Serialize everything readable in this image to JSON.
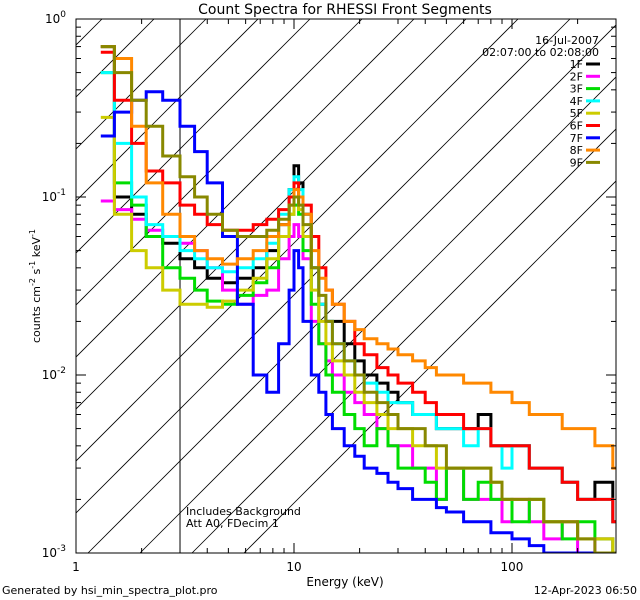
{
  "chart_data": {
    "type": "line",
    "title": "Count Spectra for RHESSI Front Segments",
    "xlabel": "Energy (keV)",
    "ylabel_main": "counts cm",
    "ylabel_sup1": "-2",
    "ylabel_mid": " s",
    "ylabel_sup2": "-1",
    "ylabel_end": " keV",
    "ylabel_sup3": "-1",
    "x_scale": "log",
    "y_scale": "log",
    "xlim": [
      1,
      300
    ],
    "ylim": [
      0.001,
      1
    ],
    "x_tick_labels": [
      {
        "value": 1,
        "label": "1"
      },
      {
        "value": 10,
        "label": "10"
      },
      {
        "value": 100,
        "label": "100"
      }
    ],
    "y_tick_labels": [
      {
        "value": 1,
        "base": "10",
        "exp": "0"
      },
      {
        "value": 0.1,
        "base": "10",
        "exp": "-1"
      },
      {
        "value": 0.01,
        "base": "10",
        "exp": "-2"
      },
      {
        "value": 0.001,
        "base": "10",
        "exp": "-3"
      }
    ],
    "date_label": "16-Jul-2007",
    "time_range_label": "02:07:00 to 02:08:00",
    "hatched_region_max_energy": 3,
    "annotation_line1": "Includes Background",
    "annotation_line2": "Att A0, FDecim 1",
    "series": [
      {
        "name": "1F",
        "color": "#000000",
        "x": [
          1.3,
          1.5,
          1.8,
          2.1,
          2.5,
          3.0,
          3.5,
          4.0,
          4.7,
          5.5,
          6.5,
          7.5,
          8.5,
          9.5,
          10,
          10.5,
          11,
          12,
          13,
          14,
          15,
          17,
          19,
          21,
          24,
          27,
          30,
          35,
          40,
          45,
          50,
          60,
          70,
          80,
          90,
          100,
          120,
          140,
          170,
          200,
          240,
          290
        ],
        "y": [
          0.7,
          0.1,
          0.08,
          0.06,
          0.055,
          0.045,
          0.04,
          0.035,
          0.033,
          0.035,
          0.04,
          0.05,
          0.07,
          0.11,
          0.15,
          0.12,
          0.08,
          0.04,
          0.025,
          0.02,
          0.02,
          0.015,
          0.012,
          0.01,
          0.009,
          0.008,
          0.007,
          0.006,
          0.006,
          0.005,
          0.005,
          0.005,
          0.006,
          0.004,
          0.004,
          0.004,
          0.003,
          0.003,
          0.0025,
          0.002,
          0.0025,
          0.0015
        ]
      },
      {
        "name": "2F",
        "color": "#ff00ff",
        "x": [
          1.3,
          1.5,
          1.8,
          2.1,
          2.5,
          3.0,
          3.5,
          4.0,
          4.7,
          5.5,
          6.5,
          7.5,
          8.5,
          9.5,
          10,
          10.5,
          11,
          12,
          13,
          14,
          15,
          17,
          19,
          21,
          24,
          27,
          30,
          35,
          40,
          45,
          50,
          60,
          70,
          80,
          90,
          100,
          120,
          140,
          170,
          200,
          240,
          290
        ],
        "y": [
          0.095,
          0.085,
          0.075,
          0.065,
          0.06,
          0.055,
          0.05,
          0.04,
          0.03,
          0.025,
          0.028,
          0.03,
          0.045,
          0.06,
          0.07,
          0.06,
          0.045,
          0.02,
          0.015,
          0.012,
          0.01,
          0.008,
          0.007,
          0.006,
          0.005,
          0.004,
          0.004,
          0.003,
          0.003,
          0.002,
          0.003,
          0.002,
          0.002,
          0.002,
          0.0015,
          0.002,
          0.0015,
          0.0012,
          0.0015,
          0.001,
          0.0012,
          0.001
        ]
      },
      {
        "name": "3F",
        "color": "#00dd00",
        "x": [
          1.3,
          1.5,
          1.8,
          2.1,
          2.5,
          3.0,
          3.5,
          4.0,
          4.7,
          5.5,
          6.5,
          7.5,
          8.5,
          9.5,
          10,
          10.5,
          11,
          12,
          13,
          14,
          15,
          17,
          19,
          21,
          24,
          27,
          30,
          35,
          40,
          45,
          50,
          60,
          70,
          80,
          90,
          100,
          120,
          140,
          170,
          200,
          240,
          290
        ],
        "y": [
          0.5,
          0.12,
          0.09,
          0.06,
          0.04,
          0.035,
          0.03,
          0.026,
          0.025,
          0.028,
          0.033,
          0.04,
          0.06,
          0.08,
          0.09,
          0.08,
          0.05,
          0.025,
          0.015,
          0.01,
          0.008,
          0.006,
          0.005,
          0.004,
          0.005,
          0.004,
          0.003,
          0.003,
          0.0025,
          0.002,
          0.003,
          0.002,
          0.0025,
          0.002,
          0.002,
          0.0015,
          0.002,
          0.0015,
          0.0012,
          0.0015,
          0.0012,
          0.001
        ]
      },
      {
        "name": "4F",
        "color": "#00ffff",
        "x": [
          1.3,
          1.5,
          1.8,
          2.1,
          2.5,
          3.0,
          3.5,
          4.0,
          4.7,
          5.5,
          6.5,
          7.5,
          8.5,
          9.5,
          10,
          10.5,
          11,
          12,
          13,
          14,
          15,
          17,
          19,
          21,
          24,
          27,
          30,
          35,
          40,
          45,
          50,
          60,
          70,
          80,
          90,
          100,
          120,
          140,
          170,
          200,
          240,
          290
        ],
        "y": [
          0.5,
          0.2,
          0.1,
          0.07,
          0.06,
          0.05,
          0.045,
          0.04,
          0.038,
          0.04,
          0.045,
          0.055,
          0.08,
          0.11,
          0.13,
          0.11,
          0.08,
          0.04,
          0.025,
          0.02,
          0.015,
          0.012,
          0.01,
          0.009,
          0.008,
          0.007,
          0.007,
          0.006,
          0.006,
          0.005,
          0.005,
          0.004,
          0.005,
          0.004,
          0.003,
          0.004,
          0.003,
          0.003,
          0.0025,
          0.002,
          0.002,
          0.0015
        ]
      },
      {
        "name": "5F",
        "color": "#cccc00",
        "x": [
          1.3,
          1.5,
          1.8,
          2.1,
          2.5,
          3.0,
          3.5,
          4.0,
          4.7,
          5.5,
          6.5,
          7.5,
          8.5,
          9.5,
          10,
          10.5,
          11,
          12,
          13,
          14,
          15,
          17,
          19,
          21,
          24,
          27,
          30,
          35,
          40,
          45,
          50,
          60,
          70,
          80,
          90,
          100,
          120,
          140,
          170,
          200,
          240,
          290
        ],
        "y": [
          0.28,
          0.08,
          0.05,
          0.04,
          0.03,
          0.025,
          0.025,
          0.024,
          0.026,
          0.03,
          0.035,
          0.045,
          0.06,
          0.08,
          0.1,
          0.085,
          0.06,
          0.03,
          0.02,
          0.015,
          0.012,
          0.01,
          0.008,
          0.007,
          0.006,
          0.005,
          0.005,
          0.004,
          0.004,
          0.003,
          0.003,
          0.003,
          0.003,
          0.0025,
          0.002,
          0.002,
          0.002,
          0.0015,
          0.0015,
          0.0012,
          0.0012,
          0.001
        ]
      },
      {
        "name": "6F",
        "color": "#ff0000",
        "x": [
          1.3,
          1.5,
          1.8,
          2.1,
          2.5,
          3.0,
          3.5,
          4.0,
          4.7,
          5.5,
          6.5,
          7.5,
          8.5,
          9.5,
          10,
          10.5,
          11,
          12,
          13,
          14,
          15,
          17,
          19,
          21,
          24,
          27,
          30,
          35,
          40,
          45,
          50,
          60,
          70,
          80,
          90,
          100,
          120,
          140,
          170,
          200,
          240,
          290
        ],
        "y": [
          0.65,
          0.35,
          0.2,
          0.14,
          0.12,
          0.09,
          0.08,
          0.07,
          0.065,
          0.065,
          0.07,
          0.075,
          0.085,
          0.1,
          0.12,
          0.1,
          0.09,
          0.06,
          0.04,
          0.03,
          0.025,
          0.02,
          0.015,
          0.013,
          0.011,
          0.01,
          0.009,
          0.008,
          0.007,
          0.006,
          0.006,
          0.005,
          0.005,
          0.004,
          0.004,
          0.004,
          0.003,
          0.003,
          0.0025,
          0.002,
          0.002,
          0.0015
        ]
      },
      {
        "name": "7F",
        "color": "#0000ff",
        "x": [
          1.3,
          1.5,
          1.8,
          2.1,
          2.5,
          3.0,
          3.5,
          4.0,
          4.7,
          5.5,
          6.5,
          7.5,
          8.5,
          9.5,
          10,
          10.5,
          11,
          12,
          13,
          14,
          15,
          17,
          19,
          21,
          24,
          27,
          30,
          35,
          40,
          45,
          50,
          60,
          70,
          80,
          90,
          100,
          120,
          140,
          170,
          200,
          240,
          290
        ],
        "y": [
          0.22,
          0.3,
          0.35,
          0.39,
          0.35,
          0.25,
          0.18,
          0.12,
          0.06,
          0.025,
          0.01,
          0.008,
          0.015,
          0.03,
          0.05,
          0.04,
          0.02,
          0.01,
          0.008,
          0.006,
          0.005,
          0.004,
          0.0035,
          0.003,
          0.0028,
          0.0025,
          0.0023,
          0.002,
          0.002,
          0.0018,
          0.0017,
          0.0015,
          0.0015,
          0.0013,
          0.0013,
          0.0012,
          0.0011,
          0.001,
          0.001,
          0.001,
          0.001,
          0.001
        ]
      },
      {
        "name": "8F",
        "color": "#ff8800",
        "x": [
          1.3,
          1.5,
          1.8,
          2.1,
          2.5,
          3.0,
          3.5,
          4.0,
          4.7,
          5.5,
          6.5,
          7.5,
          8.5,
          9.5,
          10,
          10.5,
          11,
          12,
          13,
          14,
          15,
          17,
          19,
          21,
          24,
          27,
          30,
          35,
          40,
          45,
          50,
          60,
          70,
          80,
          90,
          100,
          120,
          140,
          170,
          200,
          240,
          290
        ],
        "y": [
          0.7,
          0.6,
          0.25,
          0.12,
          0.08,
          0.06,
          0.05,
          0.045,
          0.042,
          0.045,
          0.05,
          0.06,
          0.07,
          0.09,
          0.11,
          0.1,
          0.08,
          0.05,
          0.035,
          0.03,
          0.025,
          0.02,
          0.018,
          0.016,
          0.015,
          0.014,
          0.013,
          0.012,
          0.011,
          0.01,
          0.01,
          0.009,
          0.009,
          0.008,
          0.008,
          0.007,
          0.006,
          0.006,
          0.005,
          0.005,
          0.004,
          0.003
        ]
      },
      {
        "name": "9F",
        "color": "#888800",
        "x": [
          1.3,
          1.5,
          1.8,
          2.1,
          2.5,
          3.0,
          3.5,
          4.0,
          4.7,
          5.5,
          6.5,
          7.5,
          8.5,
          9.5,
          10,
          10.5,
          11,
          12,
          13,
          14,
          15,
          17,
          19,
          21,
          24,
          27,
          30,
          35,
          40,
          45,
          50,
          60,
          70,
          80,
          90,
          100,
          120,
          140,
          170,
          200,
          240,
          290
        ],
        "y": [
          0.7,
          0.5,
          0.35,
          0.25,
          0.17,
          0.13,
          0.1,
          0.08,
          0.065,
          0.06,
          0.06,
          0.065,
          0.075,
          0.09,
          0.1,
          0.09,
          0.07,
          0.04,
          0.028,
          0.02,
          0.015,
          0.012,
          0.01,
          0.008,
          0.007,
          0.006,
          0.005,
          0.005,
          0.004,
          0.004,
          0.003,
          0.003,
          0.003,
          0.0025,
          0.002,
          0.002,
          0.002,
          0.0015,
          0.0015,
          0.0012,
          0.001,
          0.001
        ]
      }
    ]
  },
  "footer": {
    "generated_by": "Generated by hsi_min_spectra_plot.pro",
    "timestamp": "12-Apr-2023 06:50"
  }
}
